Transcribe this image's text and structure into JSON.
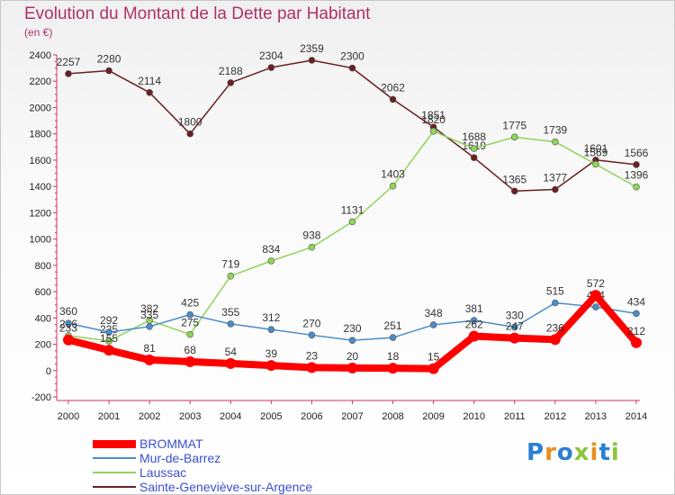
{
  "title": "Evolution du Montant de la Dette par Habitant",
  "unit": "(en €)",
  "logo": {
    "text": "Proxiti",
    "colors": [
      "#2a7fd4",
      "#e89020",
      "#2a7fd4",
      "#8cc43c",
      "#e89020",
      "#2a7fd4",
      "#8cc43c"
    ]
  },
  "chart_data": {
    "type": "line",
    "title": "Evolution du Montant de la Dette par Habitant",
    "ylabel": "(en €)",
    "xlabel": "",
    "x": [
      "2000",
      "2001",
      "2002",
      "2003",
      "2004",
      "2005",
      "2006",
      "2007",
      "2008",
      "2009",
      "2010",
      "2011",
      "2012",
      "2013",
      "2014"
    ],
    "ylim": [
      -200,
      2400
    ],
    "yticks": [
      "-200",
      "0",
      "200",
      "400",
      "600",
      "800",
      "1000",
      "1200",
      "1400",
      "1600",
      "1800",
      "2000",
      "2200",
      "2400"
    ],
    "grid": false,
    "legend_position": "bottom-left",
    "series": [
      {
        "name": "Sainte-Geneviève-sur-Argence",
        "color": "#6b1f22",
        "values": [
          2257,
          2280,
          2114,
          1800,
          2188,
          2304,
          2359,
          2300,
          2062,
          1851,
          1619,
          1365,
          1377,
          1601,
          1566
        ],
        "labels": [
          "2257",
          "2280",
          "2114",
          "1800",
          "2188",
          "2304",
          "2359",
          "2300",
          "2062",
          "1851",
          "1619",
          "1365",
          "1377",
          "1601",
          "1566"
        ]
      },
      {
        "name": "Laussac",
        "color": "#8fd45a",
        "values": [
          266,
          225,
          382,
          275,
          719,
          834,
          938,
          1131,
          1403,
          1820,
          1688,
          1775,
          1739,
          1569,
          1396
        ],
        "labels": [
          "266",
          "225",
          "382",
          "275",
          "719",
          "834",
          "938",
          "1131",
          "1403",
          "1820",
          "1688",
          "1775",
          "1739",
          "1569",
          "1396"
        ]
      },
      {
        "name": "Mur-de-Barrez",
        "color": "#4a8cc8",
        "values": [
          360,
          292,
          335,
          425,
          355,
          312,
          270,
          230,
          251,
          348,
          381,
          330,
          515,
          484,
          434
        ],
        "labels": [
          "360",
          "292",
          "335",
          "425",
          "355",
          "312",
          "270",
          "230",
          "251",
          "348",
          "381",
          "330",
          "515",
          "484",
          "434"
        ]
      },
      {
        "name": "BROMMAT",
        "color": "#ff0000",
        "values": [
          233,
          155,
          81,
          68,
          54,
          39,
          23,
          20,
          18,
          15,
          262,
          247,
          236,
          572,
          212
        ],
        "labels": [
          "233",
          "155",
          "81",
          "68",
          "54",
          "39",
          "23",
          "20",
          "18",
          "15",
          "262",
          "247",
          "236",
          "572",
          "212"
        ]
      }
    ],
    "legend": [
      {
        "name": "BROMMAT",
        "color": "#ff0000"
      },
      {
        "name": "Mur-de-Barrez",
        "color": "#4a8cc8"
      },
      {
        "name": "Laussac",
        "color": "#8fd45a"
      },
      {
        "name": "Sainte-Geneviève-sur-Argence",
        "color": "#6b1f22"
      }
    ]
  }
}
